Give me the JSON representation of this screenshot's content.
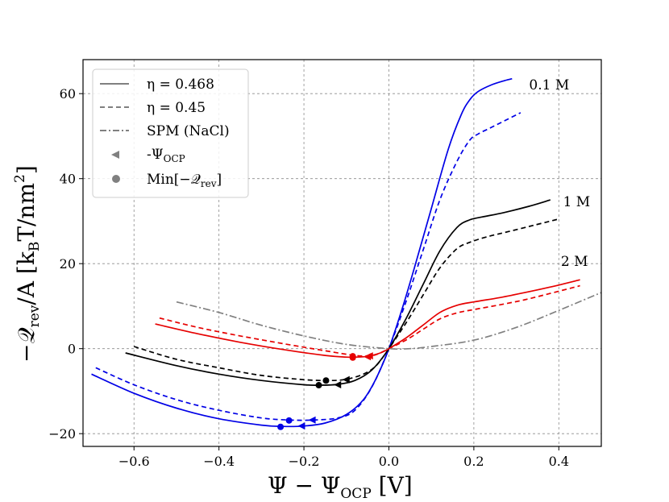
{
  "chart_data": {
    "type": "line",
    "xlabel": "Ψ − Ψ",
    "xlabel_sub": "OCP",
    "xlabel_tail": " [V]",
    "ylabel": "−𝒬",
    "ylabel_sub": "rev",
    "ylabel_tail": "/A [k",
    "ylabel_sub2": "B",
    "ylabel_tail2": "T/nm",
    "ylabel_sup": "2",
    "ylabel_tail3": "]",
    "xlim": [
      -0.72,
      0.5
    ],
    "ylim": [
      -23,
      68
    ],
    "xticks": [
      -0.6,
      -0.4,
      -0.2,
      0.0,
      0.2,
      0.4
    ],
    "xtick_labels": [
      "−0.6",
      "−0.4",
      "−0.2",
      "0.0",
      "0.2",
      "0.4"
    ],
    "yticks": [
      -20,
      0,
      20,
      40,
      60
    ],
    "ytick_labels": [
      "−20",
      "0",
      "20",
      "40",
      "60"
    ],
    "grid": true,
    "legend": {
      "position": "top-left",
      "entries": [
        {
          "label": "η = 0.468",
          "style": "solid",
          "color": "#808080",
          "marker": "line"
        },
        {
          "label": "η = 0.45",
          "style": "dashed",
          "color": "#808080",
          "marker": "line"
        },
        {
          "label": "SPM (NaCl)",
          "style": "dashdot",
          "color": "#808080",
          "marker": "line"
        },
        {
          "label": "-Ψ",
          "sub": "OCP",
          "style": "none",
          "color": "#808080",
          "marker": "triangle"
        },
        {
          "label": "Min[−𝒬",
          "sub": "rev",
          "tail": "]",
          "style": "none",
          "color": "#808080",
          "marker": "circle"
        }
      ]
    },
    "annotations": [
      {
        "text": "0.1 M",
        "x": 0.33,
        "y": 61
      },
      {
        "text": "1 M",
        "x": 0.41,
        "y": 33.5
      },
      {
        "text": "2 M",
        "x": 0.405,
        "y": 19.5
      }
    ],
    "series": [
      {
        "name": "0.1 M η=0.468",
        "color": "#0000e6",
        "style": "solid",
        "x": [
          -0.7,
          -0.6,
          -0.5,
          -0.4,
          -0.3,
          -0.25,
          -0.2,
          -0.15,
          -0.1,
          -0.06,
          -0.03,
          0.0,
          0.03,
          0.06,
          0.1,
          0.14,
          0.17,
          0.19,
          0.21,
          0.24,
          0.27,
          0.29
        ],
        "y": [
          -6,
          -10.5,
          -14,
          -16.5,
          -18,
          -18.3,
          -18.2,
          -17.5,
          -15.5,
          -12,
          -7,
          0,
          9,
          19,
          33,
          47,
          55,
          58.5,
          60.5,
          62,
          63,
          63.5
        ]
      },
      {
        "name": "0.1 M η=0.45",
        "color": "#0000e6",
        "style": "dashed",
        "x": [
          -0.69,
          -0.6,
          -0.5,
          -0.4,
          -0.3,
          -0.23,
          -0.18,
          -0.12,
          -0.08,
          -0.04,
          0.0,
          0.04,
          0.08,
          0.12,
          0.16,
          0.19,
          0.21,
          0.24,
          0.27,
          0.31
        ],
        "y": [
          -4.5,
          -8.5,
          -12,
          -14.5,
          -16.3,
          -16.8,
          -16.8,
          -16.3,
          -14.5,
          -9,
          0,
          11,
          23,
          35,
          44,
          49,
          50.5,
          52,
          53.5,
          55.5
        ]
      },
      {
        "name": "1 M η=0.468",
        "color": "#000000",
        "style": "solid",
        "x": [
          -0.62,
          -0.5,
          -0.4,
          -0.3,
          -0.2,
          -0.16,
          -0.12,
          -0.08,
          -0.04,
          0.0,
          0.04,
          0.08,
          0.12,
          0.16,
          0.19,
          0.22,
          0.27,
          0.33,
          0.38
        ],
        "y": [
          -1,
          -4,
          -6,
          -7.5,
          -8.5,
          -8.6,
          -8.4,
          -7.5,
          -5,
          0,
          7,
          15,
          23,
          28.5,
          30.3,
          31,
          32,
          33.5,
          35
        ]
      },
      {
        "name": "1 M η=0.45",
        "color": "#000000",
        "style": "dashed",
        "x": [
          -0.6,
          -0.5,
          -0.4,
          -0.3,
          -0.2,
          -0.14,
          -0.1,
          -0.06,
          -0.03,
          0.0,
          0.04,
          0.08,
          0.12,
          0.16,
          0.19,
          0.23,
          0.28,
          0.34,
          0.4
        ],
        "y": [
          0.5,
          -2.5,
          -4.5,
          -6.3,
          -7.3,
          -7.5,
          -7.2,
          -6,
          -4,
          0,
          6,
          12.5,
          19,
          23.5,
          25,
          26.3,
          27.5,
          29,
          30.5
        ]
      },
      {
        "name": "2 M η=0.468",
        "color": "#e60000",
        "style": "solid",
        "x": [
          -0.55,
          -0.45,
          -0.35,
          -0.25,
          -0.15,
          -0.1,
          -0.08,
          -0.05,
          -0.02,
          0.0,
          0.04,
          0.08,
          0.12,
          0.16,
          0.2,
          0.26,
          0.32,
          0.38,
          0.45
        ],
        "y": [
          5.8,
          3.5,
          1.5,
          -0.2,
          -1.6,
          -2,
          -2,
          -1.8,
          -1,
          0,
          2.5,
          5.5,
          8.5,
          10.2,
          11,
          12,
          13.2,
          14.5,
          16.2
        ]
      },
      {
        "name": "2 M η=0.45",
        "color": "#e60000",
        "style": "dashed",
        "x": [
          -0.54,
          -0.45,
          -0.35,
          -0.25,
          -0.15,
          -0.08,
          -0.05,
          -0.03,
          0.0,
          0.04,
          0.08,
          0.12,
          0.16,
          0.2,
          0.26,
          0.32,
          0.38,
          0.45
        ],
        "y": [
          7.2,
          5,
          3,
          1.2,
          -0.5,
          -1.6,
          -1.7,
          -1.4,
          0,
          2,
          4.5,
          7,
          8.4,
          9.2,
          10.3,
          11.5,
          13,
          14.8
        ]
      },
      {
        "name": "SPM (NaCl)",
        "color": "#808080",
        "style": "dashdot",
        "x": [
          -0.5,
          -0.4,
          -0.3,
          -0.2,
          -0.1,
          0.0,
          0.05,
          0.1,
          0.2,
          0.3,
          0.4,
          0.5
        ],
        "y": [
          11,
          8.5,
          5.5,
          3,
          1,
          0,
          0,
          0.5,
          2,
          5,
          9,
          13.2
        ]
      }
    ],
    "triangle_markers": [
      {
        "x": -0.205,
        "y": -18.2,
        "color": "#0000e6"
      },
      {
        "x": -0.18,
        "y": -16.8,
        "color": "#0000e6"
      },
      {
        "x": -0.12,
        "y": -8.5,
        "color": "#000000"
      },
      {
        "x": -0.1,
        "y": -7.3,
        "color": "#000000"
      },
      {
        "x": -0.05,
        "y": -1.9,
        "color": "#e60000"
      },
      {
        "x": -0.045,
        "y": -1.7,
        "color": "#e60000"
      }
    ],
    "circle_markers": [
      {
        "x": -0.255,
        "y": -18.4,
        "color": "#0000e6"
      },
      {
        "x": -0.235,
        "y": -16.9,
        "color": "#0000e6"
      },
      {
        "x": -0.165,
        "y": -8.6,
        "color": "#000000"
      },
      {
        "x": -0.148,
        "y": -7.5,
        "color": "#000000"
      },
      {
        "x": -0.085,
        "y": -2.1,
        "color": "#e60000"
      },
      {
        "x": -0.085,
        "y": -1.8,
        "color": "#e60000"
      }
    ]
  }
}
